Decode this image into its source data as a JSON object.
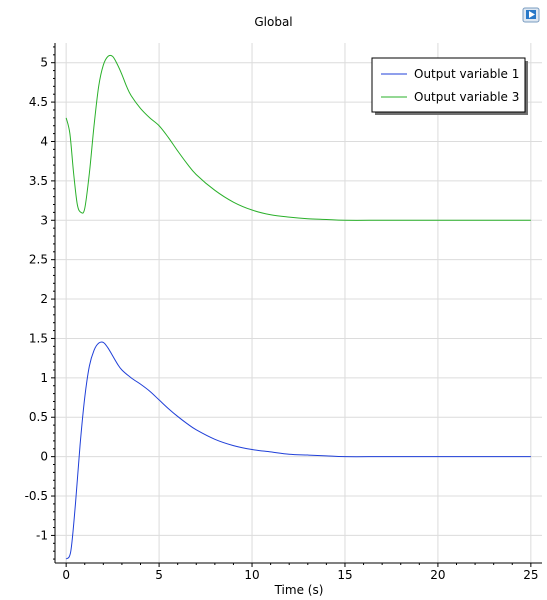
{
  "chart_data": {
    "type": "line",
    "title": "Global",
    "xlabel": "Time (s)",
    "ylabel": "",
    "xlim": [
      -0.6,
      25.6
    ],
    "ylim": [
      -1.35,
      5.25
    ],
    "xticks": [
      0,
      5,
      10,
      15,
      20,
      25
    ],
    "xtick_labels": [
      "0",
      "5",
      "10",
      "15",
      "20",
      "25"
    ],
    "yticks": [
      -1,
      -0.5,
      0,
      0.5,
      1,
      1.5,
      2,
      2.5,
      3,
      3.5,
      4,
      4.5,
      5
    ],
    "ytick_labels": [
      "-1",
      "-0.5",
      "0",
      "0.5",
      "1",
      "1.5",
      "2",
      "2.5",
      "3",
      "3.5",
      "4",
      "4.5",
      "5"
    ],
    "grid": true,
    "legend_position": "top-right",
    "series": [
      {
        "name": "Output variable 1",
        "color": "#1f3fd8",
        "x": [
          0,
          0.25,
          0.5,
          0.75,
          1,
          1.25,
          1.5,
          1.75,
          2,
          2.25,
          2.5,
          2.75,
          3,
          3.5,
          4,
          4.5,
          5,
          5.5,
          6,
          6.5,
          7,
          8,
          9,
          10,
          11,
          12,
          13,
          14,
          15,
          17,
          19,
          21,
          23,
          25
        ],
        "y": [
          -1.3,
          -1.2,
          -0.6,
          0.15,
          0.75,
          1.15,
          1.35,
          1.44,
          1.45,
          1.38,
          1.28,
          1.18,
          1.1,
          1.0,
          0.92,
          0.83,
          0.72,
          0.61,
          0.51,
          0.42,
          0.34,
          0.22,
          0.14,
          0.09,
          0.06,
          0.03,
          0.02,
          0.01,
          0.0,
          0.0,
          0.0,
          0.0,
          0.0,
          0.0
        ]
      },
      {
        "name": "Output variable 3",
        "color": "#2ab02a",
        "x": [
          0,
          0.2,
          0.4,
          0.6,
          0.8,
          1,
          1.25,
          1.5,
          1.75,
          2,
          2.25,
          2.5,
          2.75,
          3,
          3.25,
          3.5,
          4,
          4.5,
          5,
          5.5,
          6,
          6.5,
          7,
          8,
          9,
          10,
          11,
          12,
          13,
          14,
          15,
          17,
          19,
          21,
          23,
          25
        ],
        "y": [
          4.3,
          4.1,
          3.6,
          3.2,
          3.1,
          3.15,
          3.6,
          4.2,
          4.7,
          4.97,
          5.08,
          5.08,
          4.98,
          4.85,
          4.7,
          4.58,
          4.42,
          4.3,
          4.2,
          4.05,
          3.88,
          3.72,
          3.58,
          3.38,
          3.23,
          3.13,
          3.07,
          3.04,
          3.02,
          3.01,
          3.0,
          3.0,
          3.0,
          3.0,
          3.0,
          3.0
        ]
      }
    ]
  },
  "colors": {
    "grid": "#dcdcdc",
    "axis": "#000000",
    "logo_bg": "#2878c8"
  },
  "icons": {
    "corner_logo": "app-logo-icon"
  }
}
